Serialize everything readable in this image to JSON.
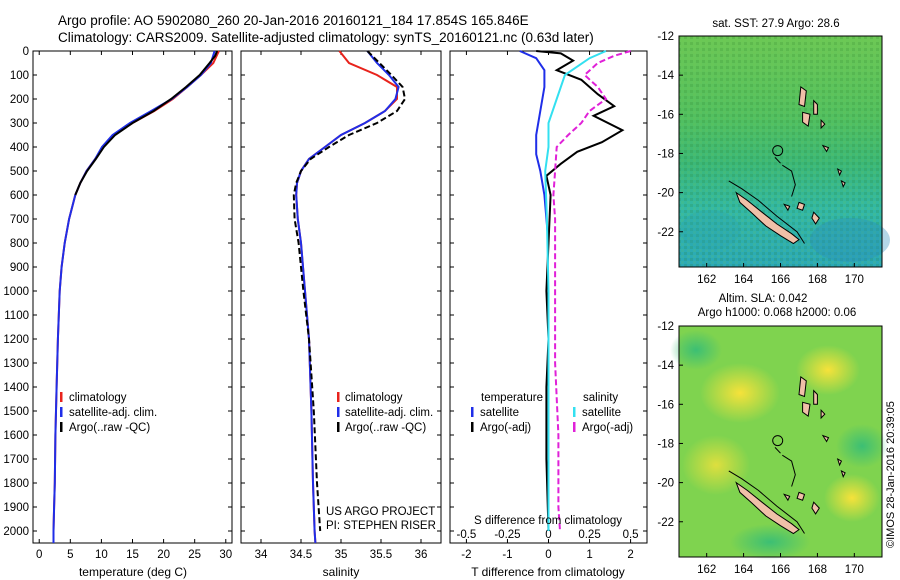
{
  "header": {
    "line1": "Argo profile: AO 5902080_260 20-Jan-2016 20160121_184 17.854S 165.846E",
    "line2": "Climatology: CARS2009. Satellite-adjusted climatology: synTS_20160121.nc (0.63d later)"
  },
  "colors": {
    "clim": "#e8231c",
    "sat": "#1f2ee8",
    "argo": "#000000",
    "sal_sat": "#33e0f0",
    "sal_argo": "#e021d8",
    "land": "#f0c0a8"
  },
  "chart_data": [
    {
      "type": "line",
      "title": "",
      "xlabel": "temperature (deg C)",
      "ylabel": "",
      "xlim": [
        -1,
        31
      ],
      "ylim": [
        2050,
        0
      ],
      "xticks": [
        0,
        5,
        10,
        15,
        20,
        25,
        30
      ],
      "yticks": [
        0,
        100,
        200,
        300,
        400,
        500,
        600,
        700,
        800,
        900,
        1000,
        1100,
        1200,
        1300,
        1400,
        1500,
        1600,
        1700,
        1800,
        1900,
        2000
      ],
      "legend": [
        "climatology",
        "satellite-adj. clim.",
        "Argo(..raw -QC)"
      ],
      "series": [
        {
          "name": "climatology",
          "color": "#e8231c",
          "style": "solid",
          "x": [
            28.9,
            28.0,
            26.0,
            23.8,
            21.5,
            18.5,
            15.0,
            12.0,
            10.2,
            9.0,
            7.6,
            6.6,
            5.8,
            4.8,
            4.1,
            3.6,
            3.3,
            3.0,
            2.8,
            2.6,
            2.5,
            2.4,
            2.3,
            2.3
          ],
          "y": [
            0,
            50,
            100,
            150,
            200,
            250,
            300,
            350,
            400,
            450,
            500,
            550,
            600,
            700,
            800,
            900,
            1000,
            1200,
            1400,
            1600,
            1800,
            1900,
            2000,
            2050
          ]
        },
        {
          "name": "satellite-adj. clim.",
          "color": "#1f2ee8",
          "style": "solid",
          "x": [
            28.2,
            27.6,
            26.0,
            23.8,
            21.3,
            18.0,
            14.6,
            11.8,
            10.1,
            9.0,
            7.6,
            6.6,
            5.8,
            4.8,
            4.1,
            3.6,
            3.3,
            3.0,
            2.8,
            2.6,
            2.5,
            2.4,
            2.3,
            2.3
          ],
          "y": [
            0,
            50,
            100,
            150,
            200,
            250,
            300,
            350,
            400,
            450,
            500,
            550,
            600,
            700,
            800,
            900,
            1000,
            1200,
            1400,
            1600,
            1800,
            1900,
            2000,
            2050
          ]
        },
        {
          "name": "Argo(..raw -QC)",
          "color": "#000000",
          "style": "solid",
          "x": [
            28.6,
            28.3,
            27.4,
            25.8,
            23.6,
            21.2,
            18.4,
            15.0,
            12.2,
            10.4,
            9.1,
            7.7,
            6.6,
            5.8
          ],
          "y": [
            0,
            20,
            50,
            100,
            150,
            200,
            250,
            300,
            350,
            400,
            450,
            500,
            550,
            600
          ]
        }
      ]
    },
    {
      "type": "line",
      "title": "",
      "xlabel": "salinity",
      "ylabel": "",
      "xlim": [
        33.75,
        36.25
      ],
      "ylim": [
        2050,
        0
      ],
      "xticks": [
        34,
        34.5,
        35,
        35.5,
        36
      ],
      "legend": [
        "climatology",
        "satellite-adj. clim.",
        "Argo(..raw -QC)"
      ],
      "annotation": [
        "US ARGO PROJECT",
        "PI: STEPHEN RISER"
      ],
      "series": [
        {
          "name": "climatology",
          "color": "#e8231c",
          "style": "solid",
          "x": [
            34.98,
            35.1,
            35.45,
            35.7,
            35.7,
            35.55,
            35.3,
            35.0,
            34.8,
            34.6,
            34.5,
            34.45,
            34.44,
            34.46,
            34.5,
            34.55,
            34.6,
            34.63,
            34.65,
            34.67,
            34.68
          ],
          "y": [
            0,
            50,
            100,
            150,
            200,
            250,
            300,
            350,
            400,
            450,
            500,
            550,
            600,
            700,
            800,
            1000,
            1200,
            1500,
            1800,
            2000,
            2050
          ]
        },
        {
          "name": "satellite-adj. clim.",
          "color": "#1f2ee8",
          "style": "solid",
          "x": [
            35.33,
            35.45,
            35.6,
            35.72,
            35.68,
            35.55,
            35.3,
            35.0,
            34.8,
            34.6,
            34.5,
            34.45,
            34.44,
            34.46,
            34.5,
            34.55,
            34.6,
            34.63,
            34.65,
            34.67,
            34.68
          ],
          "y": [
            0,
            50,
            100,
            150,
            200,
            250,
            300,
            350,
            400,
            450,
            500,
            550,
            600,
            700,
            800,
            1000,
            1200,
            1500,
            1800,
            2000,
            2050
          ]
        },
        {
          "name": "Argo(..raw -QC)",
          "color": "#000000",
          "style": "dashed",
          "x": [
            35.33,
            35.48,
            35.63,
            35.77,
            35.8,
            35.7,
            35.45,
            35.1,
            34.85,
            34.62,
            34.5,
            34.44,
            34.41,
            34.42,
            34.47,
            34.53,
            34.6,
            34.66,
            34.7,
            34.73,
            34.74
          ],
          "y": [
            0,
            50,
            100,
            150,
            200,
            250,
            300,
            350,
            400,
            450,
            500,
            550,
            600,
            700,
            800,
            1000,
            1200,
            1500,
            1800,
            1950,
            2000
          ]
        }
      ]
    },
    {
      "type": "line",
      "title": "",
      "xlabel": "T difference from climatology",
      "xlabel2": "S difference from climatology",
      "xlim": [
        -2.4,
        2.4
      ],
      "ylim": [
        2050,
        0
      ],
      "xticks": [
        -2,
        -1,
        0,
        1,
        2
      ],
      "xticks2": [
        -0.5,
        -0.25,
        0,
        0.25,
        0.5
      ],
      "xtick2_labels": [
        "-0.5",
        "-0.25",
        "0",
        "0.25",
        "0.5"
      ],
      "legend_headers": [
        "temperature",
        "salinity"
      ],
      "legend": [
        "satellite",
        "Argo(-adj)",
        "satellite",
        "Argo(-adj)"
      ],
      "series": [
        {
          "name": "temperature satellite",
          "color": "#1f2ee8",
          "style": "solid",
          "x": [
            -0.7,
            -0.3,
            -0.1,
            -0.1,
            -0.2,
            -0.3,
            -0.3,
            -0.2,
            -0.1,
            0
          ],
          "y": [
            0,
            30,
            80,
            150,
            250,
            350,
            430,
            500,
            600,
            800
          ]
        },
        {
          "name": "temperature Argo(-adj)",
          "color": "#000000",
          "style": "solid",
          "x": [
            -0.3,
            0.3,
            0.6,
            0.2,
            0.8,
            1.2,
            1.6,
            1.1,
            1.8,
            1.3,
            0.7,
            0.3,
            -0.05,
            0.05,
            0,
            -0.05,
            0,
            -0.05,
            -0.05,
            0
          ],
          "y": [
            0,
            10,
            40,
            80,
            120,
            180,
            230,
            270,
            330,
            380,
            420,
            470,
            520,
            600,
            800,
            1000,
            1200,
            1400,
            1700,
            2000
          ]
        },
        {
          "name": "salinity satellite",
          "color": "#33e0f0",
          "style": "solid",
          "x": [
            0.35,
            0.25,
            0.1,
            0.05,
            0.0,
            0.0,
            -0.02,
            -0.01,
            0.0,
            0.0,
            0.0
          ],
          "y": [
            0,
            30,
            100,
            200,
            300,
            400,
            500,
            700,
            1000,
            1500,
            2000
          ]
        },
        {
          "name": "salinity Argo(-adj)",
          "color": "#e021d8",
          "style": "dashed",
          "x": [
            0.5,
            0.4,
            0.3,
            0.22,
            0.3,
            0.35,
            0.25,
            0.2,
            0.12,
            0.05,
            0.04,
            0.03,
            0.04,
            0.04,
            0.04,
            0.06,
            0.06,
            0.07
          ],
          "y": [
            0,
            20,
            50,
            100,
            150,
            200,
            250,
            300,
            350,
            400,
            500,
            600,
            700,
            1000,
            1300,
            1600,
            1900,
            2000
          ]
        }
      ]
    },
    {
      "type": "heatmap",
      "title": "sat. SST: 27.9 Argo: 28.6",
      "xlim": [
        160.5,
        171.5
      ],
      "ylim": [
        -23.8,
        -12
      ],
      "xticks": [
        162,
        164,
        166,
        168,
        170
      ],
      "yticks": [
        -12,
        -14,
        -16,
        -18,
        -20,
        -22
      ],
      "marker": {
        "lon": 165.846,
        "lat": -17.854
      }
    },
    {
      "type": "heatmap",
      "title": "Altim. SLA: 0.042",
      "subtitle": "Argo h1000: 0.068 h2000: 0.06",
      "xlim": [
        160.5,
        171.5
      ],
      "ylim": [
        -23.8,
        -12
      ],
      "xticks": [
        162,
        164,
        166,
        168,
        170
      ],
      "yticks": [
        -12,
        -14,
        -16,
        -18,
        -20,
        -22
      ],
      "marker": {
        "lon": 165.846,
        "lat": -17.854
      }
    }
  ],
  "watermark": "©IMOS 28-Jan-2016 20:39:05"
}
